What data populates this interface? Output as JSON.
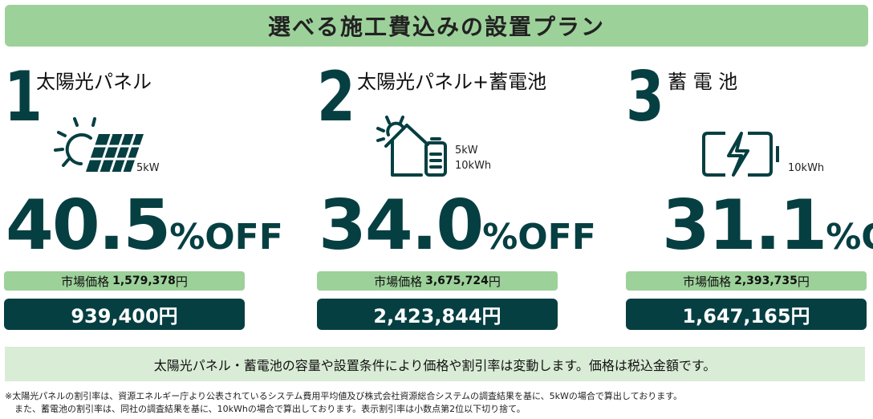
{
  "header": {
    "title": "選べる施工費込みの設置プラン"
  },
  "plans": [
    {
      "number": "1",
      "title": "太陽光パネル",
      "icon": "solar-panel-icon",
      "capacity": [
        "5kW"
      ],
      "discount": "40.5",
      "discount_unit": "%OFF",
      "market_label": "市場価格",
      "market_price": "1,579,378",
      "yen": "円",
      "price": "939,400円"
    },
    {
      "number": "2",
      "title": "太陽光パネル+蓄電池",
      "icon": "house-battery-icon",
      "capacity": [
        "5kW",
        "10kWh"
      ],
      "discount": "34.0",
      "discount_unit": "%OFF",
      "market_label": "市場価格",
      "market_price": "3,675,724",
      "yen": "円",
      "price": "2,423,844円"
    },
    {
      "number": "3",
      "title": "蓄 電 池",
      "icon": "battery-charging-icon",
      "capacity": [
        "10kWh"
      ],
      "discount": "31.1",
      "discount_unit": "%OFF",
      "market_label": "市場価格",
      "market_price": "2,393,735",
      "yen": "円",
      "price": "1,647,165円"
    }
  ],
  "note": "太陽光パネル・蓄電池の容量や設置条件により価格や割引率は変動します。価格は税込金額です。",
  "footnotes": [
    "※太陽光パネルの割引率は、資源エネルギー庁より公表されているシステム費用平均値及び株式会社資源総合システムの調査結果を基に、5kWの場合で算出しております。",
    "また、蓄電池の割引率は、同社の調査結果を基に、10kWhの場合で算出しております。表示割引率は小数点第2位以下切り捨て。"
  ],
  "colors": {
    "accent": "#9dd19a",
    "dark": "#063f42",
    "note_bg": "#d9ecd6"
  }
}
